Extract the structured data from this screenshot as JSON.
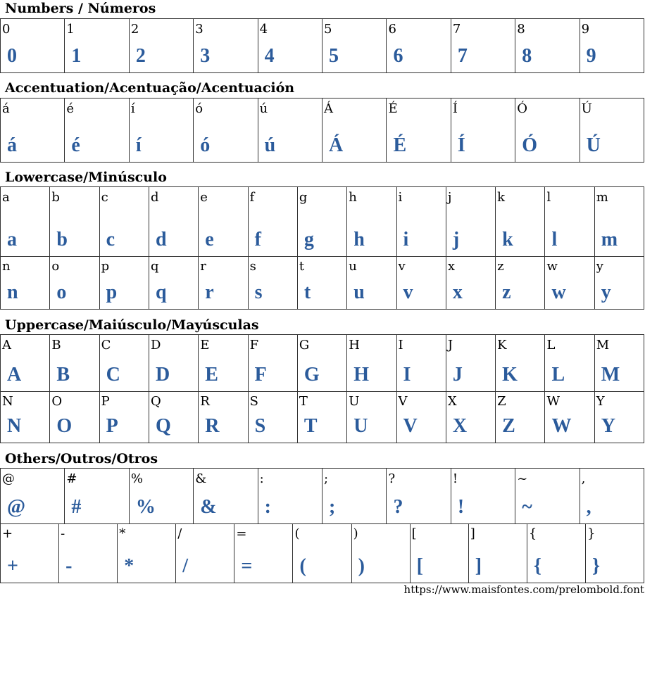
{
  "sections": [
    {
      "title": "Numbers / Números",
      "rows": [
        [
          "0",
          "1",
          "2",
          "3",
          "4",
          "5",
          "6",
          "7",
          "8",
          "9"
        ]
      ]
    },
    {
      "title": "Accentuation/Acentuação/Acentuación",
      "rows": [
        [
          "á",
          "é",
          "í",
          "ó",
          "ú",
          "Á",
          "É",
          "Í",
          "Ó",
          "Ú"
        ]
      ]
    },
    {
      "title": "Lowercase/Minúsculo",
      "rows": [
        [
          "a",
          "b",
          "c",
          "d",
          "e",
          "f",
          "g",
          "h",
          "i",
          "j",
          "k",
          "l",
          "m"
        ],
        [
          "n",
          "o",
          "p",
          "q",
          "r",
          "s",
          "t",
          "u",
          "v",
          "x",
          "z",
          "w",
          "y"
        ]
      ]
    },
    {
      "title": "Uppercase/Maiúsculo/Mayúsculas",
      "rows": [
        [
          "A",
          "B",
          "C",
          "D",
          "E",
          "F",
          "G",
          "H",
          "I",
          "J",
          "K",
          "L",
          "M"
        ],
        [
          "N",
          "O",
          "P",
          "Q",
          "R",
          "S",
          "T",
          "U",
          "V",
          "X",
          "Z",
          "W",
          "Y"
        ]
      ]
    },
    {
      "title": "Others/Outros/Otros",
      "rows": [
        [
          "@",
          "#",
          "%",
          "&",
          ":",
          ";",
          "?",
          "!",
          "~",
          ","
        ],
        [
          "+",
          "-",
          "*",
          "/",
          "=",
          "(",
          ")",
          "[",
          "]",
          "{",
          "}"
        ]
      ]
    }
  ],
  "footer": {
    "url": "https://www.maisfontes.com/prelombold.font"
  },
  "colors": {
    "glyph": "#2b5b9b"
  }
}
